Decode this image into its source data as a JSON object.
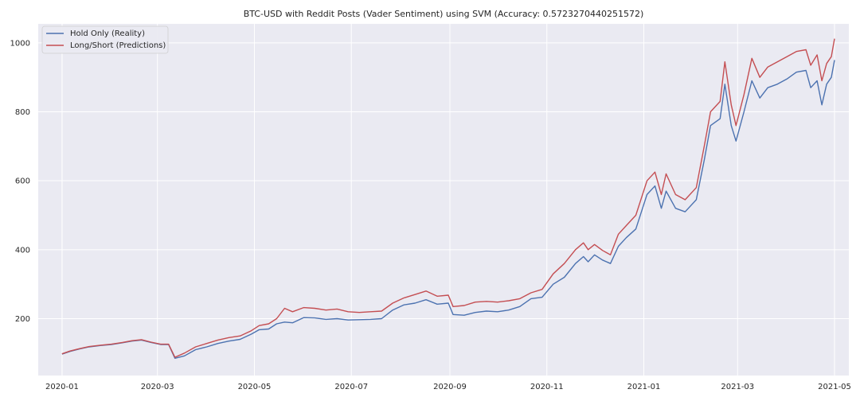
{
  "chart_data": {
    "type": "line",
    "title": "BTC-USD with Reddit Posts (Vader Sentiment) using SVM (Accuracy: 0.5723270440251572)",
    "xlabel": "",
    "ylabel": "",
    "x_ticks": [
      "2020-01",
      "2020-03",
      "2020-05",
      "2020-07",
      "2020-09",
      "2020-11",
      "2021-01",
      "2021-03",
      "2021-05"
    ],
    "y_ticks": [
      200,
      400,
      600,
      800,
      1000
    ],
    "xlim": [
      "2019-12-17",
      "2021-05-10"
    ],
    "ylim": [
      35,
      1055
    ],
    "grid": true,
    "legend_position": "top-left",
    "colors": {
      "background": "#eaeaf2",
      "grid": "#ffffff",
      "hold": "#4c72b0",
      "longshort": "#c44e52"
    },
    "series": [
      {
        "name": "Hold Only (Reality)",
        "points": [
          [
            "2020-01-01",
            97
          ],
          [
            "2020-01-06",
            105
          ],
          [
            "2020-01-12",
            112
          ],
          [
            "2020-01-18",
            118
          ],
          [
            "2020-01-25",
            122
          ],
          [
            "2020-02-01",
            125
          ],
          [
            "2020-02-08",
            130
          ],
          [
            "2020-02-14",
            135
          ],
          [
            "2020-02-20",
            138
          ],
          [
            "2020-02-26",
            131
          ],
          [
            "2020-03-03",
            125
          ],
          [
            "2020-03-08",
            125
          ],
          [
            "2020-03-12",
            85
          ],
          [
            "2020-03-18",
            92
          ],
          [
            "2020-03-25",
            110
          ],
          [
            "2020-04-01",
            118
          ],
          [
            "2020-04-08",
            128
          ],
          [
            "2020-04-15",
            135
          ],
          [
            "2020-04-22",
            140
          ],
          [
            "2020-04-29",
            155
          ],
          [
            "2020-05-04",
            168
          ],
          [
            "2020-05-10",
            170
          ],
          [
            "2020-05-15",
            185
          ],
          [
            "2020-05-20",
            190
          ],
          [
            "2020-05-25",
            188
          ],
          [
            "2020-06-01",
            203
          ],
          [
            "2020-06-08",
            202
          ],
          [
            "2020-06-15",
            198
          ],
          [
            "2020-06-22",
            200
          ],
          [
            "2020-06-29",
            196
          ],
          [
            "2020-07-06",
            197
          ],
          [
            "2020-07-13",
            198
          ],
          [
            "2020-07-20",
            200
          ],
          [
            "2020-07-27",
            225
          ],
          [
            "2020-08-03",
            240
          ],
          [
            "2020-08-10",
            245
          ],
          [
            "2020-08-17",
            255
          ],
          [
            "2020-08-24",
            242
          ],
          [
            "2020-08-31",
            245
          ],
          [
            "2020-09-03",
            212
          ],
          [
            "2020-09-10",
            210
          ],
          [
            "2020-09-17",
            218
          ],
          [
            "2020-09-24",
            222
          ],
          [
            "2020-10-01",
            220
          ],
          [
            "2020-10-08",
            225
          ],
          [
            "2020-10-15",
            235
          ],
          [
            "2020-10-22",
            258
          ],
          [
            "2020-10-29",
            262
          ],
          [
            "2020-11-05",
            300
          ],
          [
            "2020-11-12",
            320
          ],
          [
            "2020-11-19",
            360
          ],
          [
            "2020-11-24",
            380
          ],
          [
            "2020-11-27",
            365
          ],
          [
            "2020-12-01",
            385
          ],
          [
            "2020-12-06",
            370
          ],
          [
            "2020-12-11",
            360
          ],
          [
            "2020-12-16",
            410
          ],
          [
            "2020-12-21",
            435
          ],
          [
            "2020-12-27",
            460
          ],
          [
            "2021-01-03",
            560
          ],
          [
            "2021-01-08",
            585
          ],
          [
            "2021-01-12",
            520
          ],
          [
            "2021-01-15",
            570
          ],
          [
            "2021-01-21",
            520
          ],
          [
            "2021-01-27",
            510
          ],
          [
            "2021-02-03",
            545
          ],
          [
            "2021-02-08",
            660
          ],
          [
            "2021-02-12",
            760
          ],
          [
            "2021-02-18",
            780
          ],
          [
            "2021-02-21",
            880
          ],
          [
            "2021-02-25",
            760
          ],
          [
            "2021-02-28",
            715
          ],
          [
            "2021-03-05",
            800
          ],
          [
            "2021-03-10",
            890
          ],
          [
            "2021-03-15",
            840
          ],
          [
            "2021-03-20",
            870
          ],
          [
            "2021-03-26",
            880
          ],
          [
            "2021-04-01",
            895
          ],
          [
            "2021-04-07",
            915
          ],
          [
            "2021-04-13",
            920
          ],
          [
            "2021-04-16",
            870
          ],
          [
            "2021-04-20",
            890
          ],
          [
            "2021-04-23",
            820
          ],
          [
            "2021-04-26",
            880
          ],
          [
            "2021-04-29",
            900
          ],
          [
            "2021-05-01",
            950
          ]
        ]
      },
      {
        "name": "Long/Short (Predictions)",
        "points": [
          [
            "2020-01-01",
            98
          ],
          [
            "2020-01-06",
            106
          ],
          [
            "2020-01-12",
            113
          ],
          [
            "2020-01-18",
            119
          ],
          [
            "2020-01-25",
            123
          ],
          [
            "2020-02-01",
            126
          ],
          [
            "2020-02-08",
            131
          ],
          [
            "2020-02-14",
            136
          ],
          [
            "2020-02-20",
            139
          ],
          [
            "2020-02-26",
            132
          ],
          [
            "2020-03-03",
            126
          ],
          [
            "2020-03-08",
            126
          ],
          [
            "2020-03-12",
            88
          ],
          [
            "2020-03-18",
            100
          ],
          [
            "2020-03-25",
            118
          ],
          [
            "2020-04-01",
            128
          ],
          [
            "2020-04-08",
            138
          ],
          [
            "2020-04-15",
            145
          ],
          [
            "2020-04-22",
            150
          ],
          [
            "2020-04-29",
            165
          ],
          [
            "2020-05-04",
            180
          ],
          [
            "2020-05-10",
            185
          ],
          [
            "2020-05-15",
            200
          ],
          [
            "2020-05-20",
            230
          ],
          [
            "2020-05-25",
            220
          ],
          [
            "2020-06-01",
            232
          ],
          [
            "2020-06-08",
            230
          ],
          [
            "2020-06-15",
            225
          ],
          [
            "2020-06-22",
            228
          ],
          [
            "2020-06-29",
            220
          ],
          [
            "2020-07-06",
            218
          ],
          [
            "2020-07-13",
            220
          ],
          [
            "2020-07-20",
            222
          ],
          [
            "2020-07-27",
            245
          ],
          [
            "2020-08-03",
            260
          ],
          [
            "2020-08-10",
            270
          ],
          [
            "2020-08-17",
            280
          ],
          [
            "2020-08-24",
            265
          ],
          [
            "2020-08-31",
            268
          ],
          [
            "2020-09-03",
            235
          ],
          [
            "2020-09-10",
            238
          ],
          [
            "2020-09-17",
            248
          ],
          [
            "2020-09-24",
            250
          ],
          [
            "2020-10-01",
            248
          ],
          [
            "2020-10-08",
            252
          ],
          [
            "2020-10-15",
            258
          ],
          [
            "2020-10-22",
            275
          ],
          [
            "2020-10-29",
            285
          ],
          [
            "2020-11-05",
            330
          ],
          [
            "2020-11-12",
            360
          ],
          [
            "2020-11-19",
            400
          ],
          [
            "2020-11-24",
            420
          ],
          [
            "2020-11-27",
            400
          ],
          [
            "2020-12-01",
            415
          ],
          [
            "2020-12-06",
            398
          ],
          [
            "2020-12-11",
            385
          ],
          [
            "2020-12-16",
            445
          ],
          [
            "2020-12-21",
            470
          ],
          [
            "2020-12-27",
            500
          ],
          [
            "2021-01-03",
            600
          ],
          [
            "2021-01-08",
            625
          ],
          [
            "2021-01-12",
            560
          ],
          [
            "2021-01-15",
            620
          ],
          [
            "2021-01-21",
            560
          ],
          [
            "2021-01-27",
            545
          ],
          [
            "2021-02-03",
            580
          ],
          [
            "2021-02-08",
            700
          ],
          [
            "2021-02-12",
            800
          ],
          [
            "2021-02-18",
            830
          ],
          [
            "2021-02-21",
            945
          ],
          [
            "2021-02-25",
            820
          ],
          [
            "2021-02-28",
            760
          ],
          [
            "2021-03-05",
            850
          ],
          [
            "2021-03-10",
            955
          ],
          [
            "2021-03-15",
            900
          ],
          [
            "2021-03-20",
            930
          ],
          [
            "2021-03-26",
            945
          ],
          [
            "2021-04-01",
            960
          ],
          [
            "2021-04-07",
            975
          ],
          [
            "2021-04-13",
            980
          ],
          [
            "2021-04-16",
            935
          ],
          [
            "2021-04-20",
            965
          ],
          [
            "2021-04-23",
            890
          ],
          [
            "2021-04-26",
            940
          ],
          [
            "2021-04-29",
            960
          ],
          [
            "2021-05-01",
            1012
          ]
        ]
      }
    ]
  }
}
